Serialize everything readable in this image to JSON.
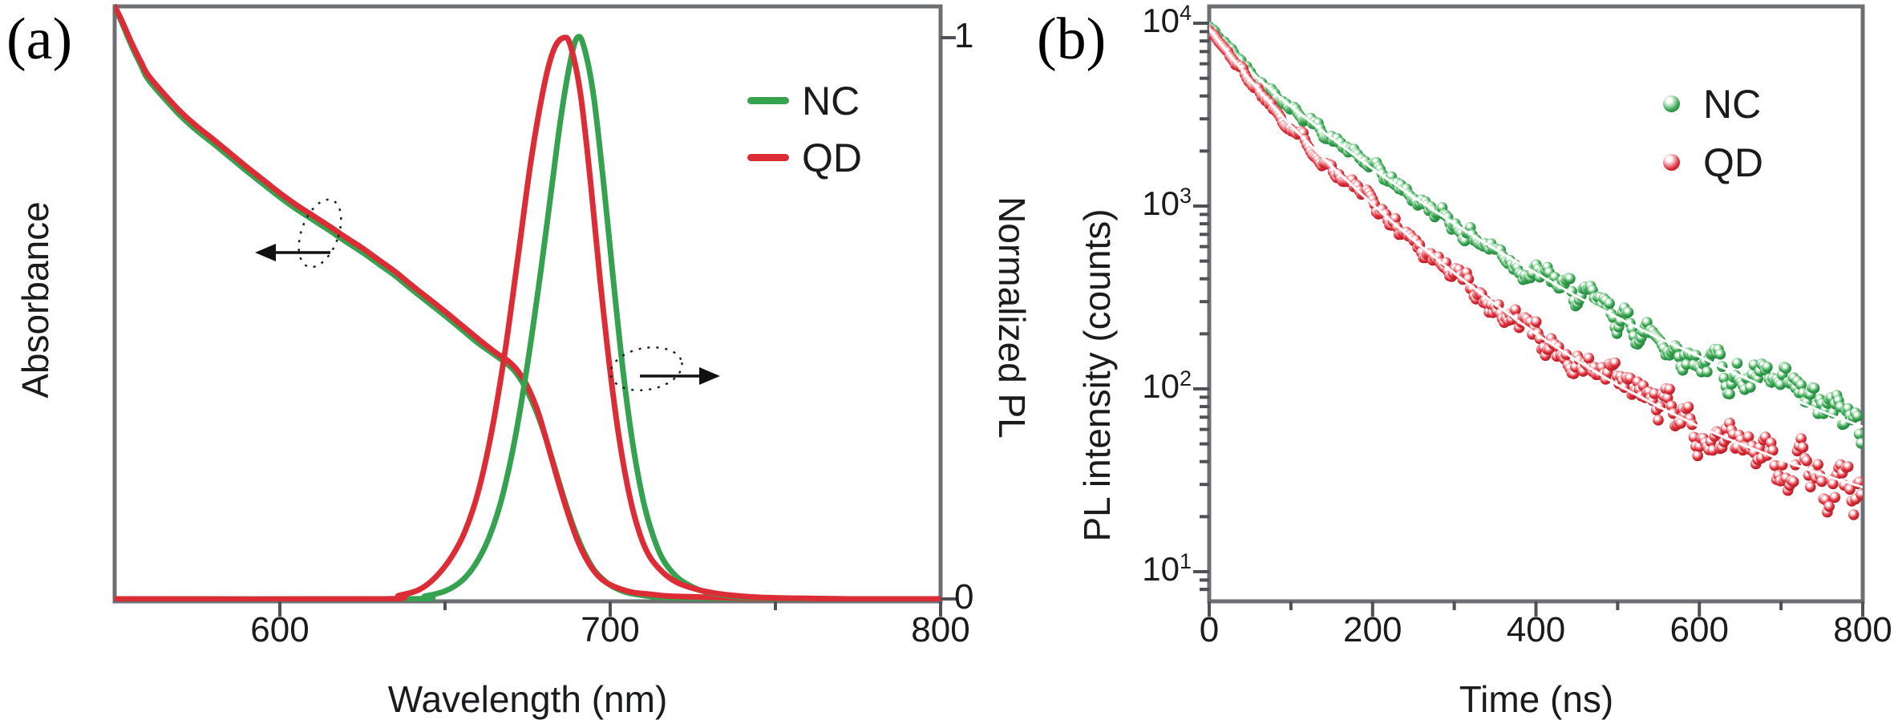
{
  "panels": {
    "a": {
      "label": "(a)",
      "x_axis": {
        "title": "Wavelength (nm)",
        "min": 550,
        "max": 800,
        "major_ticks": [
          600,
          700,
          800
        ],
        "minor_ticks": [
          650,
          750
        ]
      },
      "y_axis_left": {
        "title": "Absorbance"
      },
      "y_axis_right": {
        "title": "Normalized PL",
        "tick_labels": [
          "1",
          "0"
        ],
        "tick_values": [
          1,
          0
        ]
      },
      "legend": [
        {
          "label": "NC",
          "color": "#35a24f",
          "marker": "line"
        },
        {
          "label": "QD",
          "color": "#dc2d37",
          "marker": "line"
        }
      ],
      "annotations": [
        {
          "name": "absorbance-pointer",
          "shape": "dotted-ellipse",
          "arrow_direction": "left",
          "meaning": "absorbance curves read on left axis"
        },
        {
          "name": "pl-pointer",
          "shape": "dotted-ellipse",
          "arrow_direction": "right",
          "meaning": "PL curves read on right axis"
        }
      ]
    },
    "b": {
      "label": "(b)",
      "x_axis": {
        "title": "Time (ns)",
        "min": 0,
        "max": 800,
        "major_ticks": [
          0,
          200,
          400,
          600,
          800
        ],
        "minor_ticks": [
          100,
          300,
          500,
          700
        ]
      },
      "y_axis": {
        "title": "PL intensity (counts)",
        "scale": "log",
        "major_ticks": [
          {
            "base": "10",
            "exp": "4",
            "value": 10000
          },
          {
            "base": "10",
            "exp": "3",
            "value": 1000
          },
          {
            "base": "10",
            "exp": "2",
            "value": 100
          },
          {
            "base": "10",
            "exp": "1",
            "value": 10
          }
        ]
      },
      "legend": [
        {
          "label": "NC",
          "color": "#35a24f",
          "marker": "sphere-dot"
        },
        {
          "label": "QD",
          "color": "#dc2d37",
          "marker": "sphere-dot"
        }
      ]
    }
  },
  "colors": {
    "nc_green": "#35a24f",
    "nc_green_dark": "#1e7c38",
    "nc_green_light": "#a8ddb2",
    "qd_red": "#dc2d37",
    "qd_red_dark": "#a81722",
    "qd_red_light": "#f3aab0",
    "axis_gray": "#6e6f73",
    "tick_gray": "#505156",
    "text": "#1a1b1d",
    "fit_line": "#ffffff",
    "annotation": "#222222"
  },
  "chart_data": [
    {
      "panel": "a",
      "type": "line",
      "xlabel": "Wavelength (nm)",
      "ylabel_left": "Absorbance",
      "ylabel_right": "Normalized PL",
      "x_range": [
        550,
        800
      ],
      "y_right_range": [
        0,
        1
      ],
      "grid": false,
      "legend_position": "upper right inside",
      "series": [
        {
          "name": "NC absorbance",
          "axis": "left",
          "color": "#35a24f",
          "points": [
            [
              550,
              1.0
            ],
            [
              552,
              0.975
            ],
            [
              555,
              0.935
            ],
            [
              558,
              0.9
            ],
            [
              560,
              0.878
            ],
            [
              565,
              0.845
            ],
            [
              570,
              0.815
            ],
            [
              575,
              0.79
            ],
            [
              580,
              0.768
            ],
            [
              585,
              0.745
            ],
            [
              590,
              0.722
            ],
            [
              595,
              0.7
            ],
            [
              600,
              0.678
            ],
            [
              605,
              0.658
            ],
            [
              610,
              0.64
            ],
            [
              615,
              0.622
            ],
            [
              620,
              0.603
            ],
            [
              625,
              0.585
            ],
            [
              630,
              0.565
            ],
            [
              635,
              0.545
            ],
            [
              640,
              0.522
            ],
            [
              645,
              0.5
            ],
            [
              650,
              0.478
            ],
            [
              655,
              0.455
            ],
            [
              660,
              0.432
            ],
            [
              665,
              0.412
            ],
            [
              668,
              0.4
            ],
            [
              671,
              0.385
            ],
            [
              674,
              0.36
            ],
            [
              677,
              0.325
            ],
            [
              680,
              0.28
            ],
            [
              683,
              0.225
            ],
            [
              686,
              0.17
            ],
            [
              689,
              0.12
            ],
            [
              692,
              0.08
            ],
            [
              695,
              0.05
            ],
            [
              698,
              0.032
            ],
            [
              701,
              0.02
            ],
            [
              705,
              0.011
            ],
            [
              710,
              0.006
            ],
            [
              715,
              0.003
            ],
            [
              720,
              0.002
            ],
            [
              730,
              0.001
            ],
            [
              745,
              0.0
            ],
            [
              800,
              0.0
            ]
          ]
        },
        {
          "name": "QD absorbance",
          "axis": "left",
          "color": "#dc2d37",
          "points": [
            [
              550,
              1.0
            ],
            [
              552,
              0.978
            ],
            [
              555,
              0.94
            ],
            [
              558,
              0.906
            ],
            [
              560,
              0.885
            ],
            [
              565,
              0.852
            ],
            [
              570,
              0.822
            ],
            [
              575,
              0.797
            ],
            [
              580,
              0.775
            ],
            [
              585,
              0.752
            ],
            [
              590,
              0.729
            ],
            [
              595,
              0.707
            ],
            [
              600,
              0.685
            ],
            [
              605,
              0.665
            ],
            [
              610,
              0.647
            ],
            [
              615,
              0.629
            ],
            [
              620,
              0.61
            ],
            [
              625,
              0.592
            ],
            [
              630,
              0.572
            ],
            [
              635,
              0.552
            ],
            [
              640,
              0.529
            ],
            [
              645,
              0.507
            ],
            [
              650,
              0.485
            ],
            [
              655,
              0.462
            ],
            [
              660,
              0.439
            ],
            [
              665,
              0.417
            ],
            [
              669,
              0.402
            ],
            [
              672,
              0.385
            ],
            [
              675,
              0.358
            ],
            [
              678,
              0.318
            ],
            [
              681,
              0.262
            ],
            [
              684,
              0.203
            ],
            [
              687,
              0.148
            ],
            [
              690,
              0.1
            ],
            [
              693,
              0.065
            ],
            [
              696,
              0.041
            ],
            [
              699,
              0.027
            ],
            [
              703,
              0.017
            ],
            [
              707,
              0.011
            ],
            [
              712,
              0.008
            ],
            [
              717,
              0.005
            ],
            [
              722,
              0.004
            ],
            [
              728,
              0.003
            ],
            [
              735,
              0.002
            ],
            [
              742,
              0.001
            ],
            [
              752,
              0.0
            ],
            [
              800,
              0.0
            ]
          ]
        },
        {
          "name": "NC PL",
          "axis": "right",
          "color": "#35a24f",
          "peak_nm": 690,
          "points": [
            [
              550,
              0.0
            ],
            [
              638,
              0.0
            ],
            [
              644,
              0.005
            ],
            [
              650,
              0.014
            ],
            [
              655,
              0.032
            ],
            [
              659,
              0.06
            ],
            [
              663,
              0.105
            ],
            [
              667,
              0.175
            ],
            [
              671,
              0.28
            ],
            [
              675,
              0.42
            ],
            [
              679,
              0.585
            ],
            [
              682,
              0.72
            ],
            [
              685,
              0.855
            ],
            [
              688,
              0.96
            ],
            [
              690,
              1.0
            ],
            [
              692,
              0.985
            ],
            [
              695,
              0.895
            ],
            [
              698,
              0.74
            ],
            [
              701,
              0.565
            ],
            [
              704,
              0.4
            ],
            [
              707,
              0.27
            ],
            [
              710,
              0.175
            ],
            [
              713,
              0.112
            ],
            [
              716,
              0.07
            ],
            [
              720,
              0.04
            ],
            [
              724,
              0.024
            ],
            [
              728,
              0.014
            ],
            [
              733,
              0.008
            ],
            [
              738,
              0.004
            ],
            [
              744,
              0.002
            ],
            [
              752,
              0.001
            ],
            [
              762,
              0.0
            ],
            [
              800,
              0.0
            ]
          ]
        },
        {
          "name": "QD PL",
          "axis": "right",
          "color": "#dc2d37",
          "peak_nm": 686,
          "points": [
            [
              550,
              0.0
            ],
            [
              630,
              0.0
            ],
            [
              636,
              0.006
            ],
            [
              642,
              0.016
            ],
            [
              647,
              0.038
            ],
            [
              652,
              0.075
            ],
            [
              656,
              0.12
            ],
            [
              660,
              0.19
            ],
            [
              664,
              0.295
            ],
            [
              668,
              0.435
            ],
            [
              672,
              0.605
            ],
            [
              676,
              0.78
            ],
            [
              680,
              0.915
            ],
            [
              683,
              0.98
            ],
            [
              686,
              1.0
            ],
            [
              688,
              0.985
            ],
            [
              691,
              0.9
            ],
            [
              694,
              0.745
            ],
            [
              697,
              0.565
            ],
            [
              700,
              0.405
            ],
            [
              703,
              0.275
            ],
            [
              706,
              0.18
            ],
            [
              709,
              0.115
            ],
            [
              712,
              0.075
            ],
            [
              716,
              0.047
            ],
            [
              720,
              0.03
            ],
            [
              725,
              0.019
            ],
            [
              730,
              0.012
            ],
            [
              736,
              0.007
            ],
            [
              742,
              0.004
            ],
            [
              750,
              0.002
            ],
            [
              760,
              0.001
            ],
            [
              772,
              0.0
            ],
            [
              800,
              0.0
            ]
          ]
        }
      ]
    },
    {
      "panel": "b",
      "type": "scatter",
      "xlabel": "Time (ns)",
      "ylabel": "PL intensity (counts)",
      "x_range": [
        0,
        800
      ],
      "y_scale": "log",
      "y_tick_range": [
        10,
        10000
      ],
      "grid": false,
      "legend_position": "upper right inside",
      "series": [
        {
          "name": "NC decay",
          "color": "#35a24f",
          "marker": "sphere-dot",
          "fit_line_color": "#ffffff",
          "fit_points": [
            [
              0,
              9500
            ],
            [
              25,
              7200
            ],
            [
              50,
              5500
            ],
            [
              75,
              4350
            ],
            [
              100,
              3500
            ],
            [
              150,
              2350
            ],
            [
              200,
              1600
            ],
            [
              250,
              1120
            ],
            [
              300,
              800
            ],
            [
              350,
              580
            ],
            [
              400,
              430
            ],
            [
              450,
              320
            ],
            [
              500,
              245
            ],
            [
              550,
              190
            ],
            [
              600,
              150
            ],
            [
              650,
              118
            ],
            [
              700,
              94
            ],
            [
              750,
              75
            ],
            [
              800,
              62
            ]
          ]
        },
        {
          "name": "QD decay",
          "color": "#dc2d37",
          "marker": "sphere-dot",
          "fit_line_color": "#ffffff",
          "fit_points": [
            [
              0,
              9300
            ],
            [
              25,
              6700
            ],
            [
              50,
              4900
            ],
            [
              75,
              3650
            ],
            [
              100,
              2750
            ],
            [
              150,
              1650
            ],
            [
              200,
              1020
            ],
            [
              250,
              650
            ],
            [
              300,
              430
            ],
            [
              350,
              290
            ],
            [
              400,
              200
            ],
            [
              450,
              143
            ],
            [
              500,
              105
            ],
            [
              550,
              80
            ],
            [
              600,
              62
            ],
            [
              650,
              50
            ],
            [
              700,
              41
            ],
            [
              750,
              34
            ],
            [
              800,
              29
            ]
          ]
        }
      ]
    }
  ]
}
